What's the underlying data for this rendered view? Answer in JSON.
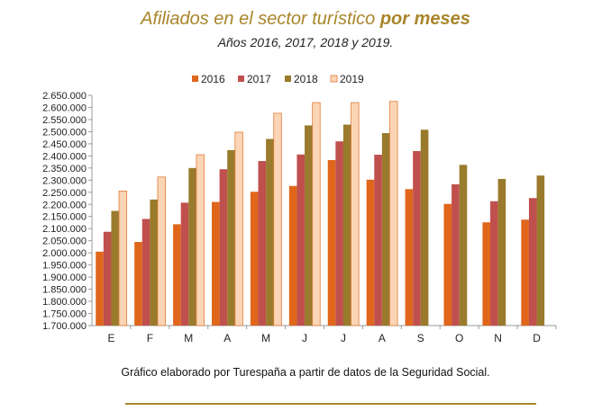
{
  "title_main": "Afiliados en el sector turístico",
  "title_bold": "por meses",
  "subtitle": "Años 2016, 2017, 2018 y 2019.",
  "source": "Gráfico elaborado por Turespaña a partir de datos de la Seguridad Social.",
  "chart_data": {
    "type": "bar",
    "categories": [
      "E",
      "F",
      "M",
      "A",
      "M",
      "J",
      "J",
      "A",
      "S",
      "O",
      "N",
      "D"
    ],
    "series": [
      {
        "name": "2016",
        "color": "#e0661b",
        "values": [
          2005000,
          2045000,
          2118000,
          2210000,
          2252000,
          2276000,
          2383000,
          2302000,
          2263000,
          2202000,
          2126000,
          2137000
        ]
      },
      {
        "name": "2017",
        "color": "#c0504d",
        "values": [
          2087000,
          2140000,
          2207000,
          2345000,
          2379000,
          2406000,
          2460000,
          2405000,
          2420000,
          2283000,
          2213000,
          2226000
        ]
      },
      {
        "name": "2018",
        "color": "#9a7a2c",
        "values": [
          2173000,
          2220000,
          2350000,
          2424000,
          2470000,
          2526000,
          2529000,
          2494000,
          2508000,
          2363000,
          2305000,
          2319000
        ]
      },
      {
        "name": "2019",
        "color": "#fbd5b5",
        "stroke": "#e07b39",
        "values": [
          2255000,
          2313000,
          2405000,
          2498000,
          2576000,
          2620000,
          2620000,
          2625000,
          null,
          null,
          null,
          null
        ]
      }
    ],
    "ylim": [
      1700000,
      2650000
    ],
    "ytick_step": 50000,
    "ytick_labels": [
      "1.700.000",
      "1.750.000",
      "1.800.000",
      "1.850.000",
      "1.900.000",
      "1.950.000",
      "2.000.000",
      "2.050.000",
      "2.100.000",
      "2.150.000",
      "2.200.000",
      "2.250.000",
      "2.300.000",
      "2.350.000",
      "2.400.000",
      "2.450.000",
      "2.500.000",
      "2.550.000",
      "2.600.000",
      "2.650.000"
    ],
    "grid": false,
    "legend_position": "top"
  }
}
